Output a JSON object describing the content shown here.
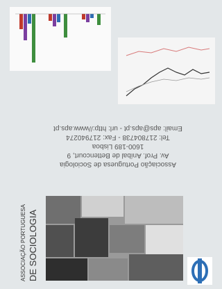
{
  "address": {
    "lines": [
      "Associação Portuguesa de Sociologia",
      "Av. Prof. Aníbal de Bettencourt, 9",
      "1600-189 Lisboa",
      "Tel: 217804738 - Fax: 217940274",
      "Email: aps@aps.pt - url: http://www.aps.pt"
    ]
  },
  "logo_text": {
    "lines": [
      "ASSOCIAÇÃO PORTUGUESA",
      "DE SOCIOLOGIA"
    ]
  }
}
